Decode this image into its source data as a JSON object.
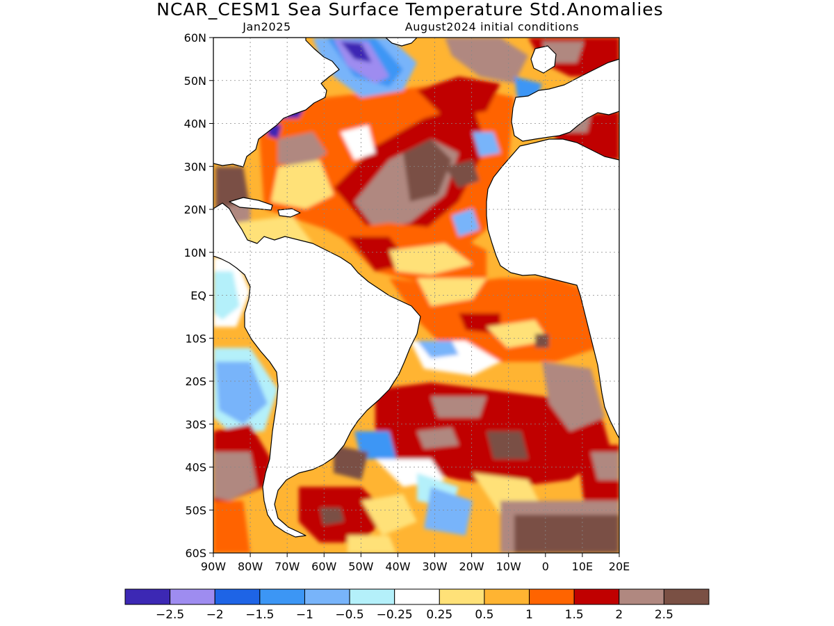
{
  "header": {
    "title": "NCAR_CESM1 Sea Surface Temperature Std.Anomalies",
    "valid_month": "Jan2025",
    "initial_conditions": "August2024 initial conditions"
  },
  "map": {
    "region": "Atlantic Ocean",
    "lon_range": [
      -90,
      20
    ],
    "lat_range": [
      -60,
      60
    ],
    "lat_ticks": [
      {
        "value": 60,
        "label": "60N"
      },
      {
        "value": 50,
        "label": "50N"
      },
      {
        "value": 40,
        "label": "40N"
      },
      {
        "value": 30,
        "label": "30N"
      },
      {
        "value": 20,
        "label": "20N"
      },
      {
        "value": 10,
        "label": "10N"
      },
      {
        "value": 0,
        "label": "EQ"
      },
      {
        "value": -10,
        "label": "10S"
      },
      {
        "value": -20,
        "label": "20S"
      },
      {
        "value": -30,
        "label": "30S"
      },
      {
        "value": -40,
        "label": "40S"
      },
      {
        "value": -50,
        "label": "50S"
      },
      {
        "value": -60,
        "label": "60S"
      }
    ],
    "lon_ticks": [
      {
        "value": -90,
        "label": "90W"
      },
      {
        "value": -80,
        "label": "80W"
      },
      {
        "value": -70,
        "label": "70W"
      },
      {
        "value": -60,
        "label": "60W"
      },
      {
        "value": -50,
        "label": "50W"
      },
      {
        "value": -40,
        "label": "40W"
      },
      {
        "value": -30,
        "label": "30W"
      },
      {
        "value": -20,
        "label": "20W"
      },
      {
        "value": -10,
        "label": "10W"
      },
      {
        "value": 0,
        "label": "0"
      },
      {
        "value": 10,
        "label": "10E"
      },
      {
        "value": 20,
        "label": "20E"
      }
    ],
    "gridlines": true,
    "land_color": "#ffffff"
  },
  "colorbar": {
    "colors": [
      "#3c28b4",
      "#9e8cf0",
      "#1e64e6",
      "#3c96f5",
      "#78b4fa",
      "#b4f0fa",
      "#ffffff",
      "#ffe178",
      "#ffb432",
      "#ff6400",
      "#c00000",
      "#b08880",
      "#7a5044"
    ],
    "labels": [
      "-2.5",
      "-2",
      "-1.5",
      "-1",
      "-0.5",
      "-0.25",
      "0.25",
      "0.5",
      "1",
      "1.5",
      "2",
      "2.5"
    ]
  }
}
